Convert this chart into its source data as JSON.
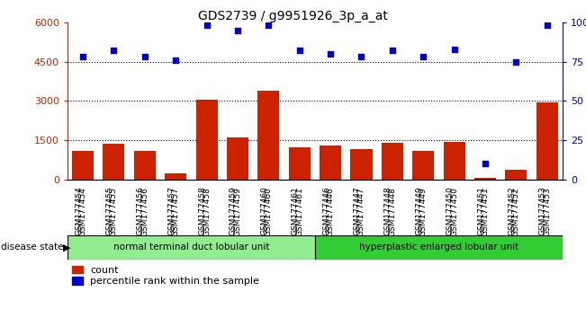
{
  "title": "GDS2739 / g9951926_3p_a_at",
  "samples": [
    "GSM177454",
    "GSM177455",
    "GSM177456",
    "GSM177457",
    "GSM177458",
    "GSM177459",
    "GSM177460",
    "GSM177461",
    "GSM177446",
    "GSM177447",
    "GSM177448",
    "GSM177449",
    "GSM177450",
    "GSM177451",
    "GSM177452",
    "GSM177453"
  ],
  "counts": [
    1100,
    1380,
    1100,
    230,
    3050,
    1600,
    3380,
    1250,
    1300,
    1180,
    1420,
    1100,
    1450,
    60,
    360,
    2960
  ],
  "percentiles": [
    78,
    82,
    78,
    76,
    98,
    95,
    98,
    82,
    80,
    78,
    82,
    78,
    83,
    10,
    75,
    98
  ],
  "group1_label": "normal terminal duct lobular unit",
  "group2_label": "hyperplastic enlarged lobular unit",
  "group1_count": 8,
  "group2_count": 8,
  "bar_color": "#cc2200",
  "scatter_color": "#0000cc",
  "ylim_left": [
    0,
    6000
  ],
  "ylim_right": [
    0,
    100
  ],
  "yticks_left": [
    0,
    1500,
    3000,
    4500,
    6000
  ],
  "yticks_right": [
    0,
    25,
    50,
    75,
    100
  ],
  "grid_values": [
    1500,
    3000,
    4500
  ],
  "group1_color": "#90ee90",
  "group2_color": "#32cd32",
  "title_color": "#000000",
  "right_axis_color": "#0000cc",
  "plot_bg": "#ffffff"
}
